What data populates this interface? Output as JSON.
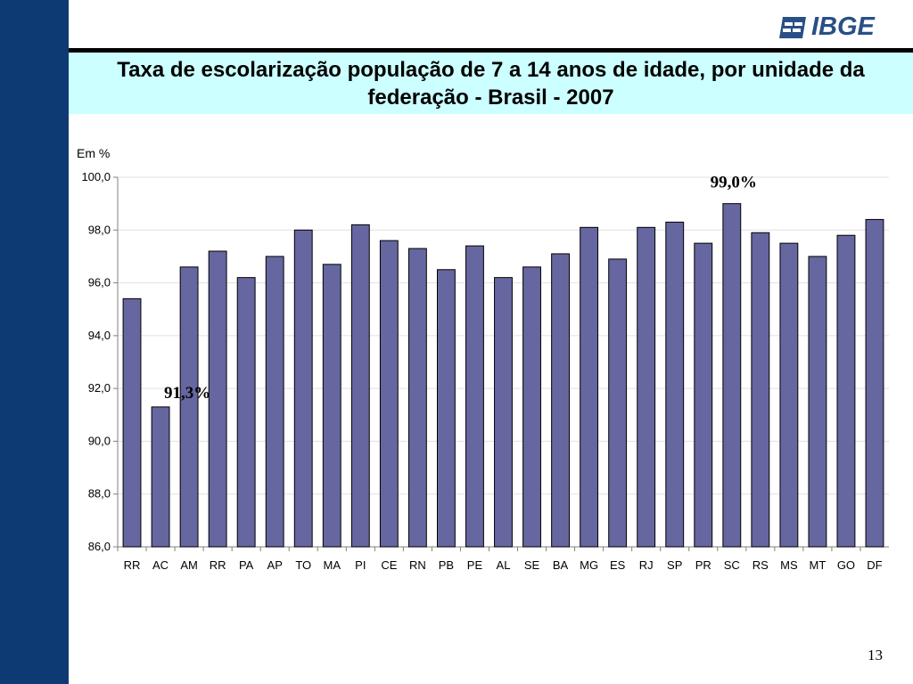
{
  "slide": {
    "title": "Taxa de escolarização população de 7 a 14 anos de idade, por unidade da federação - Brasil - 2007",
    "unit_label": "Em %",
    "page_number": "13",
    "logo_text": "IBGE",
    "colors": {
      "band": "#0d3a72",
      "title_bg": "#ccffff",
      "bar": "#6666a0",
      "logo": "#2a4f86"
    }
  },
  "chart_data": {
    "type": "bar",
    "title": "",
    "xlabel": "",
    "ylabel": "",
    "ylim": [
      86.0,
      100.0
    ],
    "yticks": [
      "86,0",
      "88,0",
      "90,0",
      "92,0",
      "94,0",
      "96,0",
      "98,0",
      "100,0"
    ],
    "ytick_values": [
      86,
      88,
      90,
      92,
      94,
      96,
      98,
      100
    ],
    "grid": true,
    "legend": "none",
    "categories": [
      "RR",
      "AC",
      "AM",
      "RR",
      "PA",
      "AP",
      "TO",
      "MA",
      "PI",
      "CE",
      "RN",
      "PB",
      "PE",
      "AL",
      "SE",
      "BA",
      "MG",
      "ES",
      "RJ",
      "SP",
      "PR",
      "SC",
      "RS",
      "MS",
      "MT",
      "GO",
      "DF"
    ],
    "values": [
      95.4,
      91.3,
      96.6,
      97.2,
      96.2,
      97.0,
      98.0,
      96.7,
      98.2,
      97.6,
      97.3,
      96.5,
      97.4,
      96.2,
      96.6,
      97.1,
      98.1,
      96.9,
      98.1,
      98.3,
      97.5,
      99.0,
      97.9,
      97.5,
      97.0,
      97.8,
      98.4
    ],
    "annotations": [
      {
        "text": "91,3%",
        "category_index": 1
      },
      {
        "text": "99,0%",
        "category_index": 21
      }
    ]
  }
}
